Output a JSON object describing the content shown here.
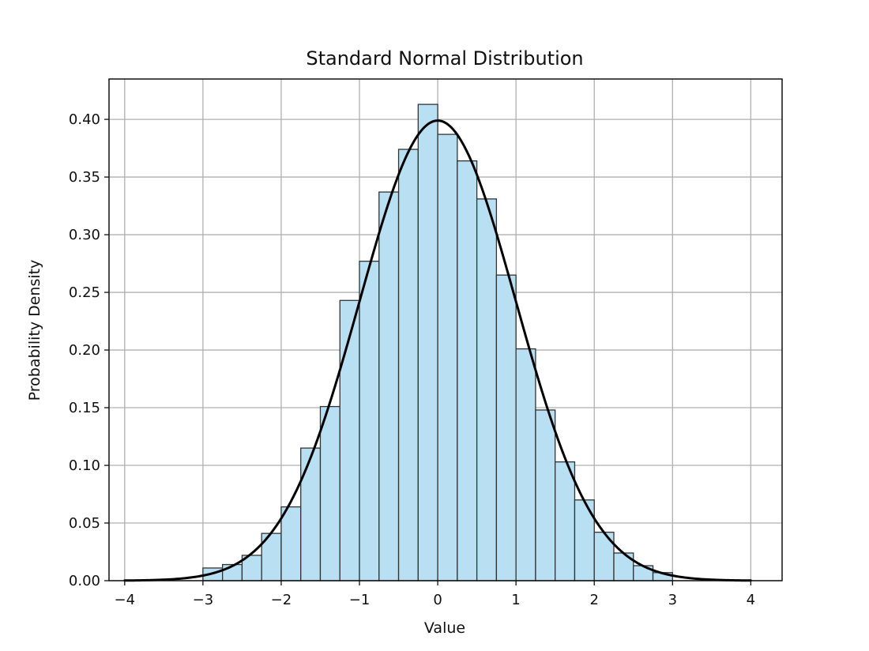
{
  "chart_data": {
    "type": "bar",
    "title": "Standard Normal Distribution",
    "xlabel": "Value",
    "ylabel": "Probability Density",
    "xlim": [
      -4.2,
      4.4
    ],
    "ylim": [
      0,
      0.435
    ],
    "grid": true,
    "x_ticks": [
      -4,
      -3,
      -2,
      -1,
      0,
      1,
      2,
      3,
      4
    ],
    "x_tick_labels": [
      "−4",
      "−3",
      "−2",
      "−1",
      "0",
      "1",
      "2",
      "3",
      "4"
    ],
    "y_ticks": [
      0,
      0.05,
      0.1,
      0.15,
      0.2,
      0.25,
      0.3,
      0.35,
      0.4
    ],
    "y_tick_labels": [
      "0.00",
      "0.05",
      "0.10",
      "0.15",
      "0.20",
      "0.25",
      "0.30",
      "0.35",
      "0.40"
    ],
    "bin_width": 0.25,
    "bins": [
      {
        "x0": -3.0,
        "density": 0.011
      },
      {
        "x0": -2.75,
        "density": 0.014
      },
      {
        "x0": -2.5,
        "density": 0.022
      },
      {
        "x0": -2.25,
        "density": 0.041
      },
      {
        "x0": -2.0,
        "density": 0.064
      },
      {
        "x0": -1.75,
        "density": 0.115
      },
      {
        "x0": -1.5,
        "density": 0.151
      },
      {
        "x0": -1.25,
        "density": 0.243
      },
      {
        "x0": -1.0,
        "density": 0.277
      },
      {
        "x0": -0.75,
        "density": 0.337
      },
      {
        "x0": -0.5,
        "density": 0.374
      },
      {
        "x0": -0.25,
        "density": 0.413
      },
      {
        "x0": 0.0,
        "density": 0.387
      },
      {
        "x0": 0.25,
        "density": 0.364
      },
      {
        "x0": 0.5,
        "density": 0.331
      },
      {
        "x0": 0.75,
        "density": 0.265
      },
      {
        "x0": 1.0,
        "density": 0.201
      },
      {
        "x0": 1.25,
        "density": 0.148
      },
      {
        "x0": 1.5,
        "density": 0.103
      },
      {
        "x0": 1.75,
        "density": 0.07
      },
      {
        "x0": 2.0,
        "density": 0.042
      },
      {
        "x0": 2.25,
        "density": 0.024
      },
      {
        "x0": 2.5,
        "density": 0.013
      },
      {
        "x0": 2.75,
        "density": 0.007
      }
    ],
    "curve": {
      "type": "line",
      "function": "standard-normal-pdf",
      "mean": 0,
      "std": 1,
      "x_range": [
        -4,
        4
      ]
    },
    "colors": {
      "bar_fill": "#b8e0f2",
      "bar_edge": "#333333",
      "curve": "#000000"
    }
  }
}
